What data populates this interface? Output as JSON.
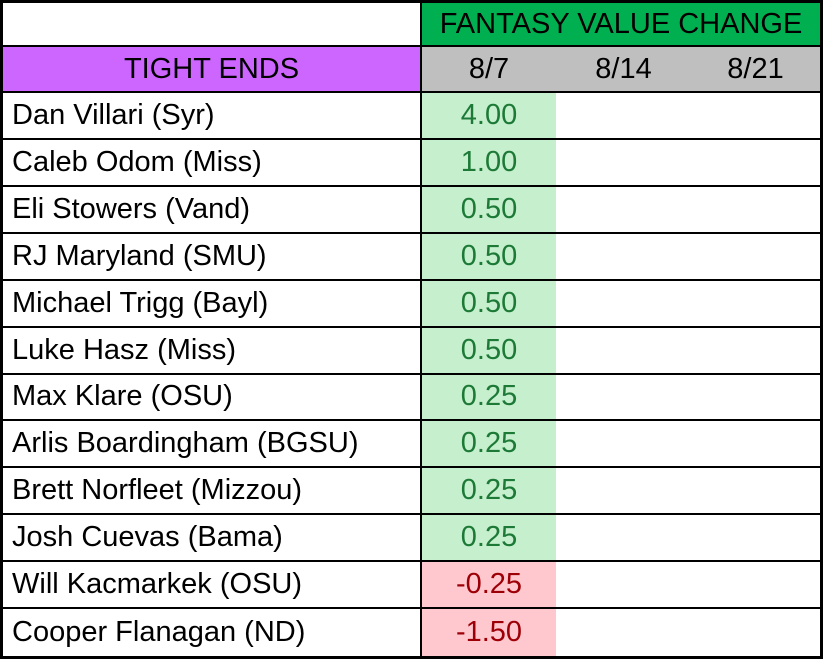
{
  "table": {
    "title": "FANTASY VALUE CHANGE",
    "group_label": "TIGHT ENDS",
    "date_columns": [
      "8/7",
      "8/14",
      "8/21"
    ],
    "rows": [
      {
        "player": "Dan Villari (Syr)",
        "values": {
          "8/7": "4.00",
          "8/14": "",
          "8/21": ""
        },
        "trend": "positive"
      },
      {
        "player": "Caleb Odom (Miss)",
        "values": {
          "8/7": "1.00",
          "8/14": "",
          "8/21": ""
        },
        "trend": "positive"
      },
      {
        "player": "Eli Stowers (Vand)",
        "values": {
          "8/7": "0.50",
          "8/14": "",
          "8/21": ""
        },
        "trend": "positive"
      },
      {
        "player": "RJ Maryland (SMU)",
        "values": {
          "8/7": "0.50",
          "8/14": "",
          "8/21": ""
        },
        "trend": "positive"
      },
      {
        "player": "Michael Trigg (Bayl)",
        "values": {
          "8/7": "0.50",
          "8/14": "",
          "8/21": ""
        },
        "trend": "positive"
      },
      {
        "player": "Luke Hasz (Miss)",
        "values": {
          "8/7": "0.50",
          "8/14": "",
          "8/21": ""
        },
        "trend": "positive"
      },
      {
        "player": "Max Klare (OSU)",
        "values": {
          "8/7": "0.25",
          "8/14": "",
          "8/21": ""
        },
        "trend": "positive"
      },
      {
        "player": "Arlis Boardingham (BGSU)",
        "values": {
          "8/7": "0.25",
          "8/14": "",
          "8/21": ""
        },
        "trend": "positive"
      },
      {
        "player": "Brett Norfleet (Mizzou)",
        "values": {
          "8/7": "0.25",
          "8/14": "",
          "8/21": ""
        },
        "trend": "positive"
      },
      {
        "player": "Josh Cuevas (Bama)",
        "values": {
          "8/7": "0.25",
          "8/14": "",
          "8/21": ""
        },
        "trend": "positive"
      },
      {
        "player": "Will Kacmarkek (OSU)",
        "values": {
          "8/7": "-0.25",
          "8/14": "",
          "8/21": ""
        },
        "trend": "negative"
      },
      {
        "player": "Cooper Flanagan (ND)",
        "values": {
          "8/7": "-1.50",
          "8/14": "",
          "8/21": ""
        },
        "trend": "negative"
      }
    ]
  },
  "colors": {
    "title_bg": "#00B050",
    "group_bg": "#CC66FF",
    "dates_bg": "#BFBFBF",
    "positive_bg": "#C6EFCE",
    "positive_text": "#1D7A36",
    "negative_bg": "#FFC7CE",
    "negative_text": "#9C0006",
    "border": "#000000"
  }
}
